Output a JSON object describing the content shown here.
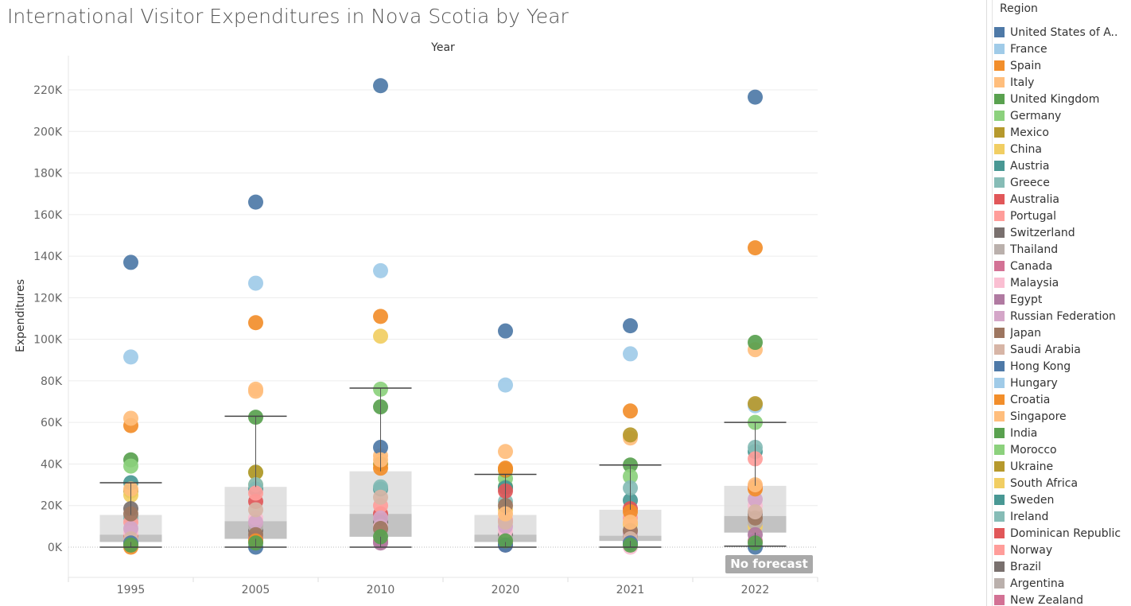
{
  "page_title": "International Visitor Expenditures in Nova Scotia by Year",
  "no_forecast": "No forecast",
  "legend": {
    "title": "Region",
    "items": [
      {
        "label": "United States of A..",
        "color": "#4e79a7"
      },
      {
        "label": "France",
        "color": "#a0cbe8"
      },
      {
        "label": "Spain",
        "color": "#f28e2b"
      },
      {
        "label": "Italy",
        "color": "#ffbe7d"
      },
      {
        "label": "United Kingdom",
        "color": "#59a14f"
      },
      {
        "label": "Germany",
        "color": "#8cd17d"
      },
      {
        "label": "Mexico",
        "color": "#b6992d"
      },
      {
        "label": "China",
        "color": "#f1ce63"
      },
      {
        "label": "Austria",
        "color": "#499894"
      },
      {
        "label": "Greece",
        "color": "#86bcb6"
      },
      {
        "label": "Australia",
        "color": "#e15759"
      },
      {
        "label": "Portugal",
        "color": "#ff9d9a"
      },
      {
        "label": "Switzerland",
        "color": "#79706e"
      },
      {
        "label": "Thailand",
        "color": "#bab0ac"
      },
      {
        "label": "Canada",
        "color": "#d37295"
      },
      {
        "label": "Malaysia",
        "color": "#fabfd2"
      },
      {
        "label": "Egypt",
        "color": "#b07aa1"
      },
      {
        "label": "Russian Federation",
        "color": "#d4a6c8"
      },
      {
        "label": "Japan",
        "color": "#9d7660"
      },
      {
        "label": "Saudi Arabia",
        "color": "#d7b5a6"
      },
      {
        "label": "Hong Kong",
        "color": "#4e79a7"
      },
      {
        "label": "Hungary",
        "color": "#a0cbe8"
      },
      {
        "label": "Croatia",
        "color": "#f28e2b"
      },
      {
        "label": "Singapore",
        "color": "#ffbe7d"
      },
      {
        "label": "India",
        "color": "#59a14f"
      },
      {
        "label": "Morocco",
        "color": "#8cd17d"
      },
      {
        "label": "Ukraine",
        "color": "#b6992d"
      },
      {
        "label": "South Africa",
        "color": "#f1ce63"
      },
      {
        "label": "Sweden",
        "color": "#499894"
      },
      {
        "label": "Ireland",
        "color": "#86bcb6"
      },
      {
        "label": "Dominican Republic",
        "color": "#e15759"
      },
      {
        "label": "Norway",
        "color": "#ff9d9a"
      },
      {
        "label": "Brazil",
        "color": "#79706e"
      },
      {
        "label": "Argentina",
        "color": "#bab0ac"
      },
      {
        "label": "New Zealand",
        "color": "#d37295"
      }
    ]
  },
  "chart_data": {
    "type": "scatter",
    "subtitle": "Year",
    "ylabel": "Expenditures",
    "categories": [
      "1995",
      "2005",
      "2010",
      "2020",
      "2021",
      "2022"
    ],
    "ylim": [
      -15000,
      230000
    ],
    "yticks": [
      0,
      20000,
      40000,
      60000,
      80000,
      100000,
      120000,
      140000,
      160000,
      180000,
      200000,
      220000
    ],
    "ytick_labels": [
      "0K",
      "20K",
      "40K",
      "60K",
      "80K",
      "100K",
      "120K",
      "140K",
      "160K",
      "180K",
      "200K",
      "220K"
    ],
    "grid": true,
    "legend_placement": "right",
    "boxplots": [
      {
        "category": "1995",
        "whisker_low": 0,
        "q1": 2500,
        "median": 6000,
        "q3": 15500,
        "whisker_high": 31000
      },
      {
        "category": "2005",
        "whisker_low": 0,
        "q1": 4000,
        "median": 12500,
        "q3": 29000,
        "whisker_high": 63000
      },
      {
        "category": "2010",
        "whisker_low": 0,
        "q1": 5000,
        "median": 16000,
        "q3": 36500,
        "whisker_high": 76500
      },
      {
        "category": "2020",
        "whisker_low": 0,
        "q1": 2500,
        "median": 6000,
        "q3": 15500,
        "whisker_high": 35000
      },
      {
        "category": "2021",
        "whisker_low": 0,
        "q1": 3000,
        "median": 5500,
        "q3": 18000,
        "whisker_high": 39500
      },
      {
        "category": "2022",
        "whisker_low": 500,
        "q1": 7000,
        "median": 15000,
        "q3": 29500,
        "whisker_high": 60000
      }
    ],
    "series": [
      {
        "name": "United States of A..",
        "values": [
          137000,
          166000,
          222000,
          104000,
          106500,
          216500
        ]
      },
      {
        "name": "France",
        "values": [
          91500,
          127000,
          133000,
          78000,
          93000,
          68000
        ]
      },
      {
        "name": "Spain",
        "values": [
          58500,
          108000,
          111000,
          38000,
          65500,
          144000
        ]
      },
      {
        "name": "Italy",
        "values": [
          62000,
          76000,
          44000,
          46000,
          52500,
          95000
        ]
      },
      {
        "name": "United Kingdom",
        "values": [
          42000,
          62500,
          67500,
          29000,
          39500,
          98500
        ]
      },
      {
        "name": "Germany",
        "values": [
          39000,
          36000,
          76000,
          33000,
          34000,
          60000
        ]
      },
      {
        "name": "Mexico",
        "values": [
          27000,
          36000,
          40000,
          37000,
          54000,
          69000
        ]
      },
      {
        "name": "China",
        "values": [
          25000,
          30000,
          101500,
          18000,
          11000,
          10000
        ]
      },
      {
        "name": "Austria",
        "values": [
          31000,
          28000,
          28000,
          28500,
          22500,
          46000
        ]
      },
      {
        "name": "Greece",
        "values": [
          14000,
          30000,
          29000,
          22000,
          28500,
          48000
        ]
      },
      {
        "name": "Australia",
        "values": [
          5000,
          22000,
          16000,
          27000,
          18500,
          29000
        ]
      },
      {
        "name": "Portugal",
        "values": [
          12000,
          26000,
          20000,
          13000,
          14000,
          42500
        ]
      },
      {
        "name": "Switzerland",
        "values": [
          18500,
          8000,
          12000,
          6000,
          5000,
          16000
        ]
      },
      {
        "name": "Thailand",
        "values": [
          3000,
          10000,
          8000,
          4000,
          6000,
          12000
        ]
      },
      {
        "name": "Canada",
        "values": [
          1000,
          4000,
          3000,
          2000,
          1000,
          3000
        ]
      },
      {
        "name": "Malaysia",
        "values": [
          7000,
          14000,
          10000,
          8000,
          0,
          20000
        ]
      },
      {
        "name": "Egypt",
        "values": [
          2000,
          3000,
          2000,
          1000,
          3000,
          6000
        ]
      },
      {
        "name": "Russian Federation",
        "values": [
          9000,
          12000,
          14000,
          10000,
          7000,
          23000
        ]
      },
      {
        "name": "Japan",
        "values": [
          16000,
          6000,
          9000,
          20000,
          8000,
          14000
        ]
      },
      {
        "name": "Saudi Arabia",
        "values": [
          4000,
          18000,
          24000,
          12000,
          4000,
          17000
        ]
      },
      {
        "name": "Hong Kong",
        "values": [
          2000,
          0,
          48000,
          1000,
          2000,
          0
        ]
      },
      {
        "name": "Croatia",
        "values": [
          0,
          3000,
          38000,
          37500,
          17000,
          28000
        ]
      },
      {
        "name": "Singapore",
        "values": [
          28000,
          75000,
          42000,
          16000,
          12000,
          30000
        ]
      },
      {
        "name": "India",
        "values": [
          1000,
          2000,
          5000,
          3000,
          1000,
          2000
        ]
      }
    ]
  }
}
